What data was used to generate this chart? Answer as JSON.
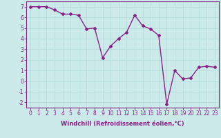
{
  "x": [
    0,
    1,
    2,
    3,
    4,
    5,
    6,
    7,
    8,
    9,
    10,
    11,
    12,
    13,
    14,
    15,
    16,
    17,
    18,
    19,
    20,
    21,
    22,
    23
  ],
  "y": [
    7.0,
    7.0,
    7.0,
    6.7,
    6.3,
    6.3,
    6.2,
    4.9,
    5.0,
    2.2,
    3.3,
    4.0,
    4.6,
    6.2,
    5.2,
    4.9,
    4.3,
    -2.2,
    1.0,
    0.2,
    0.3,
    1.3,
    1.4,
    1.3
  ],
  "line_color": "#882288",
  "marker": "D",
  "marker_size": 2.0,
  "line_width": 1.0,
  "xlabel": "Windchill (Refroidissement éolien,°C)",
  "xlabel_fontsize": 6.0,
  "xtick_labels": [
    "0",
    "1",
    "2",
    "3",
    "4",
    "5",
    "6",
    "7",
    "8",
    "9",
    "10",
    "11",
    "12",
    "13",
    "14",
    "15",
    "16",
    "17",
    "18",
    "19",
    "20",
    "21",
    "22",
    "23"
  ],
  "ylim": [
    -2.5,
    7.5
  ],
  "yticks": [
    -2,
    -1,
    0,
    1,
    2,
    3,
    4,
    5,
    6,
    7
  ],
  "grid_color": "#b8dede",
  "background_color": "#cceaea",
  "tick_fontsize": 5.5,
  "title": ""
}
